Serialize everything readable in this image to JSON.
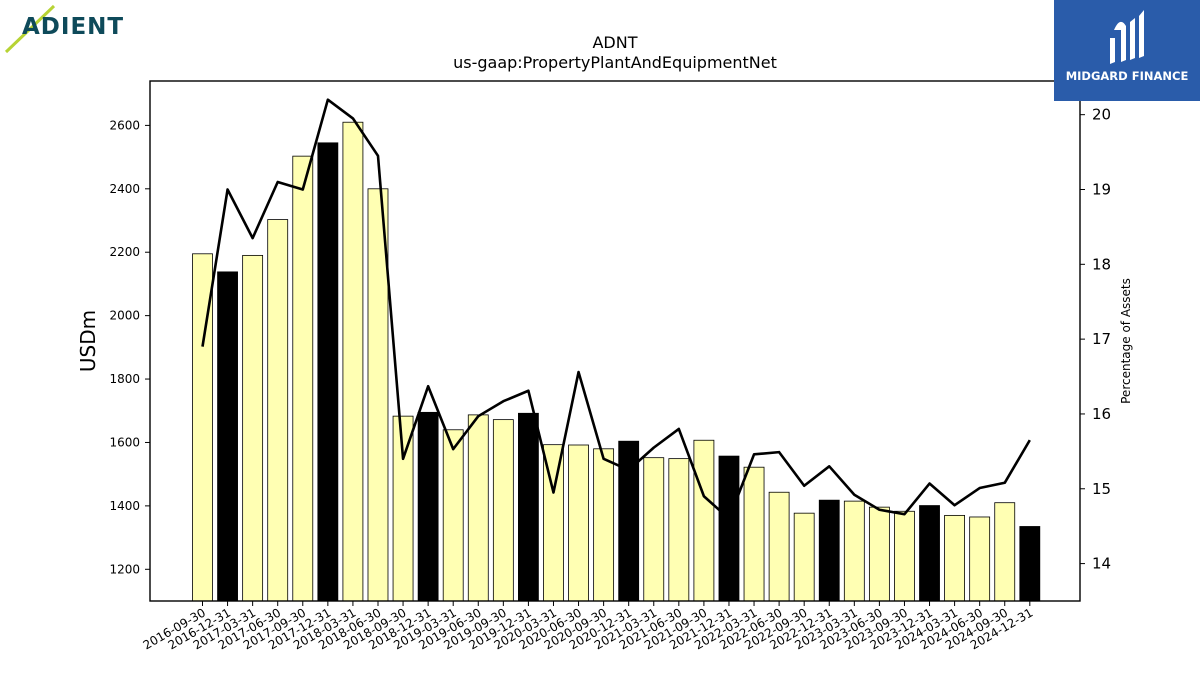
{
  "brand_left": "ADIENT",
  "brand_right": "MIDGARD FINANCE",
  "colors": {
    "bar_normal": "#ffffb3",
    "bar_highlight": "#000000",
    "line": "#000000",
    "right_logo_bg": "#2a5caa",
    "left_logo_text": "#0e4a5a",
    "left_logo_slash": "#b7d334"
  },
  "chart_data": {
    "type": "bar",
    "title": "ADNT",
    "subtitle": "us-gaap:PropertyPlantAndEquipmentNet",
    "ylabel": "USDm",
    "y2label": "Percentage of Assets",
    "ylim": [
      1100,
      2740
    ],
    "y2lim": [
      13.5,
      20.45
    ],
    "yticks": [
      1200,
      1400,
      1600,
      1800,
      2000,
      2200,
      2400,
      2600
    ],
    "y2ticks": [
      14,
      15,
      16,
      17,
      18,
      19,
      20
    ],
    "categories": [
      "2016-09-30",
      "2016-12-31",
      "2017-03-31",
      "2017-06-30",
      "2017-09-30",
      "2017-12-31",
      "2018-03-31",
      "2018-06-30",
      "2018-09-30",
      "2018-12-31",
      "2019-03-31",
      "2019-06-30",
      "2019-09-30",
      "2019-12-31",
      "2020-03-31",
      "2020-06-30",
      "2020-09-30",
      "2020-12-31",
      "2021-03-31",
      "2021-06-30",
      "2021-09-30",
      "2021-12-31",
      "2022-03-31",
      "2022-06-30",
      "2022-09-30",
      "2022-12-31",
      "2023-03-31",
      "2023-06-30",
      "2023-09-30",
      "2023-12-31",
      "2024-03-31",
      "2024-06-30",
      "2024-09-30",
      "2024-12-31"
    ],
    "values": [
      2195,
      2138,
      2190,
      2303,
      2503,
      2545,
      2610,
      2400,
      1683,
      1695,
      1640,
      1687,
      1672,
      1692,
      1593,
      1592,
      1580,
      1604,
      1552,
      1549,
      1607,
      1557,
      1522,
      1443,
      1377,
      1418,
      1415,
      1396,
      1383,
      1401,
      1370,
      1365,
      1410,
      1335
    ],
    "highlight": [
      false,
      true,
      false,
      false,
      false,
      true,
      false,
      false,
      false,
      true,
      false,
      false,
      false,
      true,
      false,
      false,
      false,
      true,
      false,
      false,
      false,
      true,
      false,
      false,
      false,
      true,
      false,
      false,
      false,
      true,
      false,
      false,
      false,
      true
    ],
    "line_values": [
      16.9,
      19.0,
      18.35,
      19.1,
      19.0,
      20.2,
      19.95,
      19.45,
      15.4,
      16.37,
      15.53,
      15.97,
      16.17,
      16.31,
      14.95,
      16.56,
      15.4,
      15.25,
      15.55,
      15.8,
      14.9,
      14.6,
      15.46,
      15.49,
      15.04,
      15.3,
      14.92,
      14.72,
      14.66,
      15.07,
      14.78,
      15.01,
      15.08,
      15.65
    ],
    "grid": false,
    "legend": "none"
  }
}
